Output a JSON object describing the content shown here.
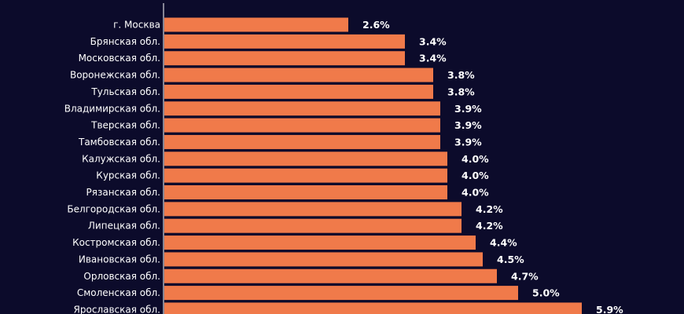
{
  "chart_data": {
    "type": "bar",
    "orientation": "horizontal",
    "title": "",
    "xlabel": "",
    "ylabel": "",
    "categories": [
      "г. Москва",
      "Брянская обл.",
      "Московская обл.",
      "Воронежская обл.",
      "Тульская обл.",
      "Владимирская обл.",
      "Тверская обл.",
      "Тамбовская обл.",
      "Калужская обл.",
      "Курская обл.",
      "Рязанская обл.",
      "Белгородская обл.",
      "Липецкая обл.",
      "Костромская обл.",
      "Ивановская обл.",
      "Орловская обл.",
      "Смоленская обл.",
      "Ярославская обл."
    ],
    "values": [
      2.6,
      3.4,
      3.4,
      3.8,
      3.8,
      3.9,
      3.9,
      3.9,
      4.0,
      4.0,
      4.0,
      4.2,
      4.2,
      4.4,
      4.5,
      4.7,
      5.0,
      5.9
    ],
    "value_labels": [
      "2.6%",
      "3.4%",
      "3.4%",
      "3.8%",
      "3.8%",
      "3.9%",
      "3.9%",
      "3.9%",
      "4.0%",
      "4.0%",
      "4.0%",
      "4.2%",
      "4.2%",
      "4.4%",
      "4.5%",
      "4.7%",
      "5.0%",
      "5.9%"
    ],
    "xlim": [
      0,
      6.5
    ],
    "grid": false,
    "colors": {
      "background": "#0c0b2b",
      "bar": "#f07a4a",
      "text": "#ffffff",
      "axis": "#ffffff"
    }
  }
}
